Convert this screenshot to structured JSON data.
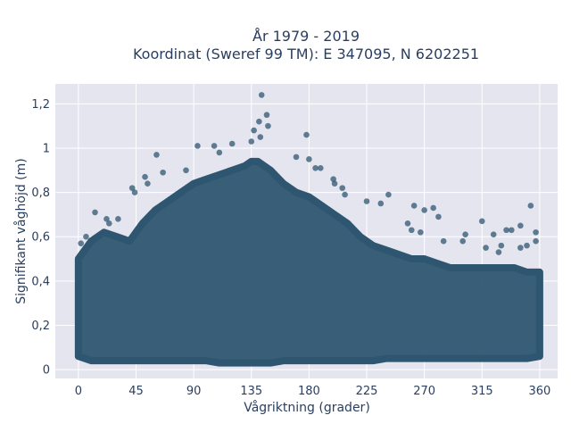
{
  "chart_data": {
    "type": "scatter",
    "title_line1": "År 1979 - 2019",
    "title_line2": "Koordinat (Sweref 99 TM): E 347095, N 6202251",
    "xlabel": "Vågriktning (grader)",
    "ylabel": "Signifikant våghöjd (m)",
    "xlim": [
      -18,
      374
    ],
    "ylim": [
      -0.04,
      1.29
    ],
    "x_ticks": [
      0,
      45,
      90,
      135,
      180,
      225,
      270,
      315,
      360
    ],
    "y_ticks": [
      0,
      0.2,
      0.4,
      0.6,
      0.8,
      1,
      1.2
    ],
    "y_tick_labels": [
      "0",
      "0,2",
      "0,4",
      "0,6",
      "0,8",
      "1",
      "1,2"
    ],
    "grid": true,
    "marker_color": "#2f5670",
    "background_color": "#e5e5f0",
    "x": [
      0,
      10,
      20,
      30,
      40,
      45,
      50,
      60,
      70,
      80,
      90,
      100,
      110,
      120,
      130,
      135,
      140,
      145,
      150,
      160,
      170,
      180,
      190,
      200,
      210,
      220,
      225,
      230,
      240,
      250,
      260,
      270,
      280,
      290,
      300,
      310,
      315,
      320,
      330,
      340,
      350,
      360
    ],
    "y_max": [
      0.5,
      0.58,
      0.62,
      0.6,
      0.58,
      0.62,
      0.66,
      0.72,
      0.76,
      0.8,
      0.84,
      0.86,
      0.88,
      0.9,
      0.92,
      0.94,
      0.94,
      0.92,
      0.9,
      0.84,
      0.8,
      0.78,
      0.74,
      0.7,
      0.66,
      0.6,
      0.58,
      0.56,
      0.54,
      0.52,
      0.5,
      0.5,
      0.48,
      0.46,
      0.46,
      0.46,
      0.46,
      0.46,
      0.46,
      0.46,
      0.44,
      0.44
    ],
    "y_min": [
      0.06,
      0.04,
      0.04,
      0.04,
      0.04,
      0.04,
      0.04,
      0.04,
      0.04,
      0.04,
      0.04,
      0.04,
      0.03,
      0.03,
      0.03,
      0.03,
      0.03,
      0.03,
      0.03,
      0.04,
      0.04,
      0.04,
      0.04,
      0.04,
      0.04,
      0.04,
      0.04,
      0.04,
      0.05,
      0.05,
      0.05,
      0.05,
      0.05,
      0.05,
      0.05,
      0.05,
      0.05,
      0.05,
      0.05,
      0.05,
      0.05,
      0.06
    ],
    "outliers": [
      {
        "x": 143,
        "y": 1.24
      },
      {
        "x": 147,
        "y": 1.15
      },
      {
        "x": 141,
        "y": 1.12
      },
      {
        "x": 148,
        "y": 1.1
      },
      {
        "x": 137,
        "y": 1.08
      },
      {
        "x": 142,
        "y": 1.05
      },
      {
        "x": 135,
        "y": 1.03
      },
      {
        "x": 120,
        "y": 1.02
      },
      {
        "x": 178,
        "y": 1.06
      },
      {
        "x": 93,
        "y": 1.01
      },
      {
        "x": 106,
        "y": 1.01
      },
      {
        "x": 110,
        "y": 0.98
      },
      {
        "x": 61,
        "y": 0.97
      },
      {
        "x": 180,
        "y": 0.95
      },
      {
        "x": 170,
        "y": 0.96
      },
      {
        "x": 185,
        "y": 0.91
      },
      {
        "x": 189,
        "y": 0.91
      },
      {
        "x": 84,
        "y": 0.9
      },
      {
        "x": 66,
        "y": 0.89
      },
      {
        "x": 52,
        "y": 0.87
      },
      {
        "x": 199,
        "y": 0.86
      },
      {
        "x": 200,
        "y": 0.84
      },
      {
        "x": 54,
        "y": 0.84
      },
      {
        "x": 42,
        "y": 0.82
      },
      {
        "x": 44,
        "y": 0.8
      },
      {
        "x": 206,
        "y": 0.82
      },
      {
        "x": 208,
        "y": 0.79
      },
      {
        "x": 242,
        "y": 0.79
      },
      {
        "x": 225,
        "y": 0.76
      },
      {
        "x": 236,
        "y": 0.75
      },
      {
        "x": 262,
        "y": 0.74
      },
      {
        "x": 270,
        "y": 0.72
      },
      {
        "x": 277,
        "y": 0.73
      },
      {
        "x": 281,
        "y": 0.69
      },
      {
        "x": 13,
        "y": 0.71
      },
      {
        "x": 22,
        "y": 0.68
      },
      {
        "x": 24,
        "y": 0.66
      },
      {
        "x": 31,
        "y": 0.68
      },
      {
        "x": 353,
        "y": 0.74
      },
      {
        "x": 315,
        "y": 0.67
      },
      {
        "x": 345,
        "y": 0.65
      },
      {
        "x": 357,
        "y": 0.62
      },
      {
        "x": 334,
        "y": 0.63
      },
      {
        "x": 338,
        "y": 0.63
      },
      {
        "x": 302,
        "y": 0.61
      },
      {
        "x": 324,
        "y": 0.61
      },
      {
        "x": 260,
        "y": 0.63
      },
      {
        "x": 267,
        "y": 0.62
      },
      {
        "x": 257,
        "y": 0.66
      },
      {
        "x": 6,
        "y": 0.6
      },
      {
        "x": 2,
        "y": 0.57
      },
      {
        "x": 357,
        "y": 0.58
      },
      {
        "x": 330,
        "y": 0.56
      },
      {
        "x": 350,
        "y": 0.56
      },
      {
        "x": 300,
        "y": 0.58
      },
      {
        "x": 285,
        "y": 0.58
      },
      {
        "x": 345,
        "y": 0.55
      },
      {
        "x": 328,
        "y": 0.53
      },
      {
        "x": 318,
        "y": 0.55
      }
    ]
  }
}
